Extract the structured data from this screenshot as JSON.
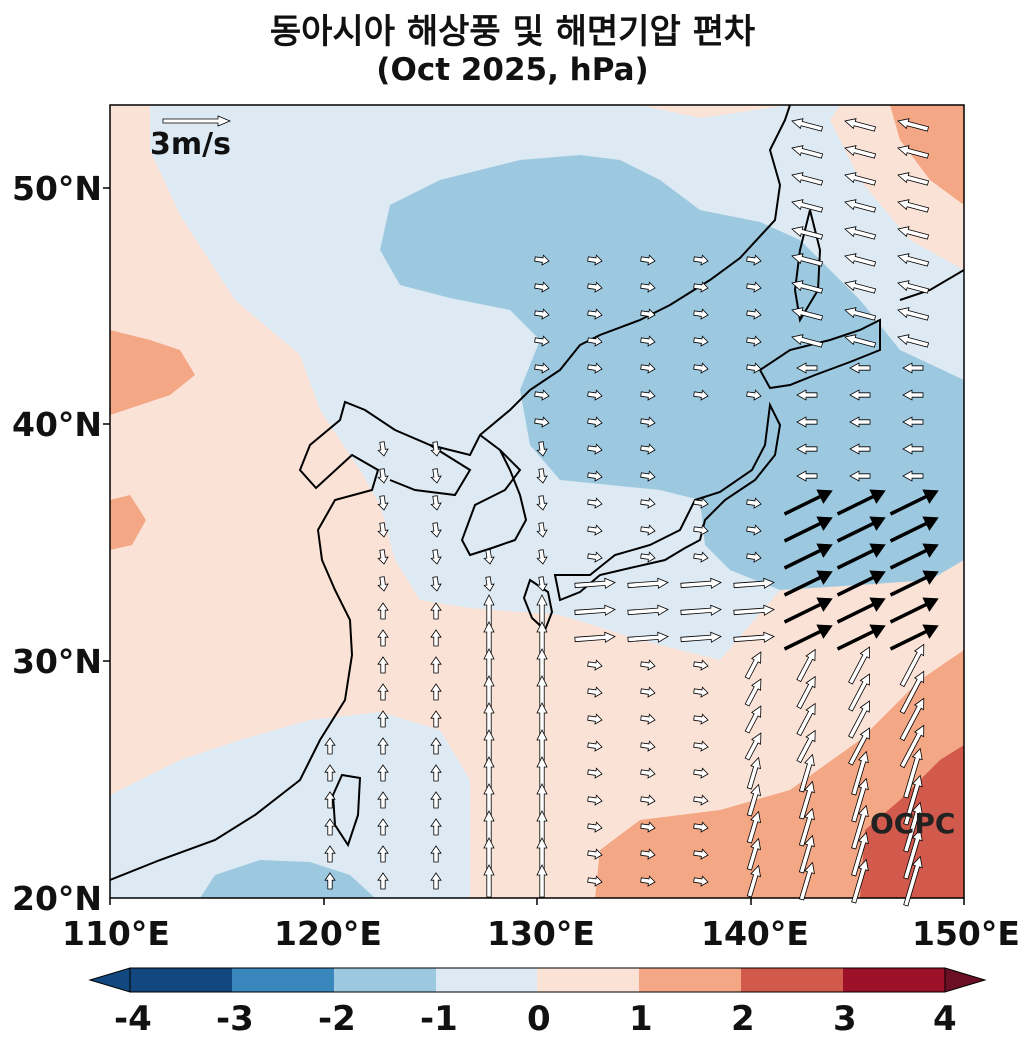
{
  "title": "동아시아 해상풍 및 해면기압 편차",
  "subtitle": "(Oct 2025, hPa)",
  "map": {
    "lon_range": [
      110,
      150
    ],
    "lat_range": [
      20,
      53.5
    ],
    "x_ticks": [
      "110°E",
      "120°E",
      "130°E",
      "140°E",
      "150°E"
    ],
    "y_ticks": [
      "50°N",
      "40°N",
      "30°N",
      "20°N"
    ],
    "reference_vector_label": "3m/s",
    "watermark": "OCPC"
  },
  "colorbar": {
    "ticks": [
      "-4",
      "-3",
      "-2",
      "-1",
      "0",
      "1",
      "2",
      "3",
      "4"
    ],
    "colors": [
      "#13477f",
      "#3a87bd",
      "#9dc9e0",
      "#deeaf3",
      "#fbe2d6",
      "#f4a784",
      "#d25a4c",
      "#9d1128",
      "#6b0f25"
    ],
    "extend": "both"
  },
  "chart_data": {
    "type": "heatmap",
    "variable": "sea level pressure anomaly (hPa) with sea-surface wind anomaly vectors",
    "levels": [
      -4,
      -3,
      -2,
      -1,
      0,
      1,
      2,
      3,
      4
    ],
    "colors": {
      "-3..-2": "#9dc9e0",
      "-2..-1": "#deeaf3",
      "-1..0": "#deeaf3",
      "0..1": "#fbe2d6",
      "1..2": "#f4a784",
      "2..3": "#d25a4c"
    }
  }
}
